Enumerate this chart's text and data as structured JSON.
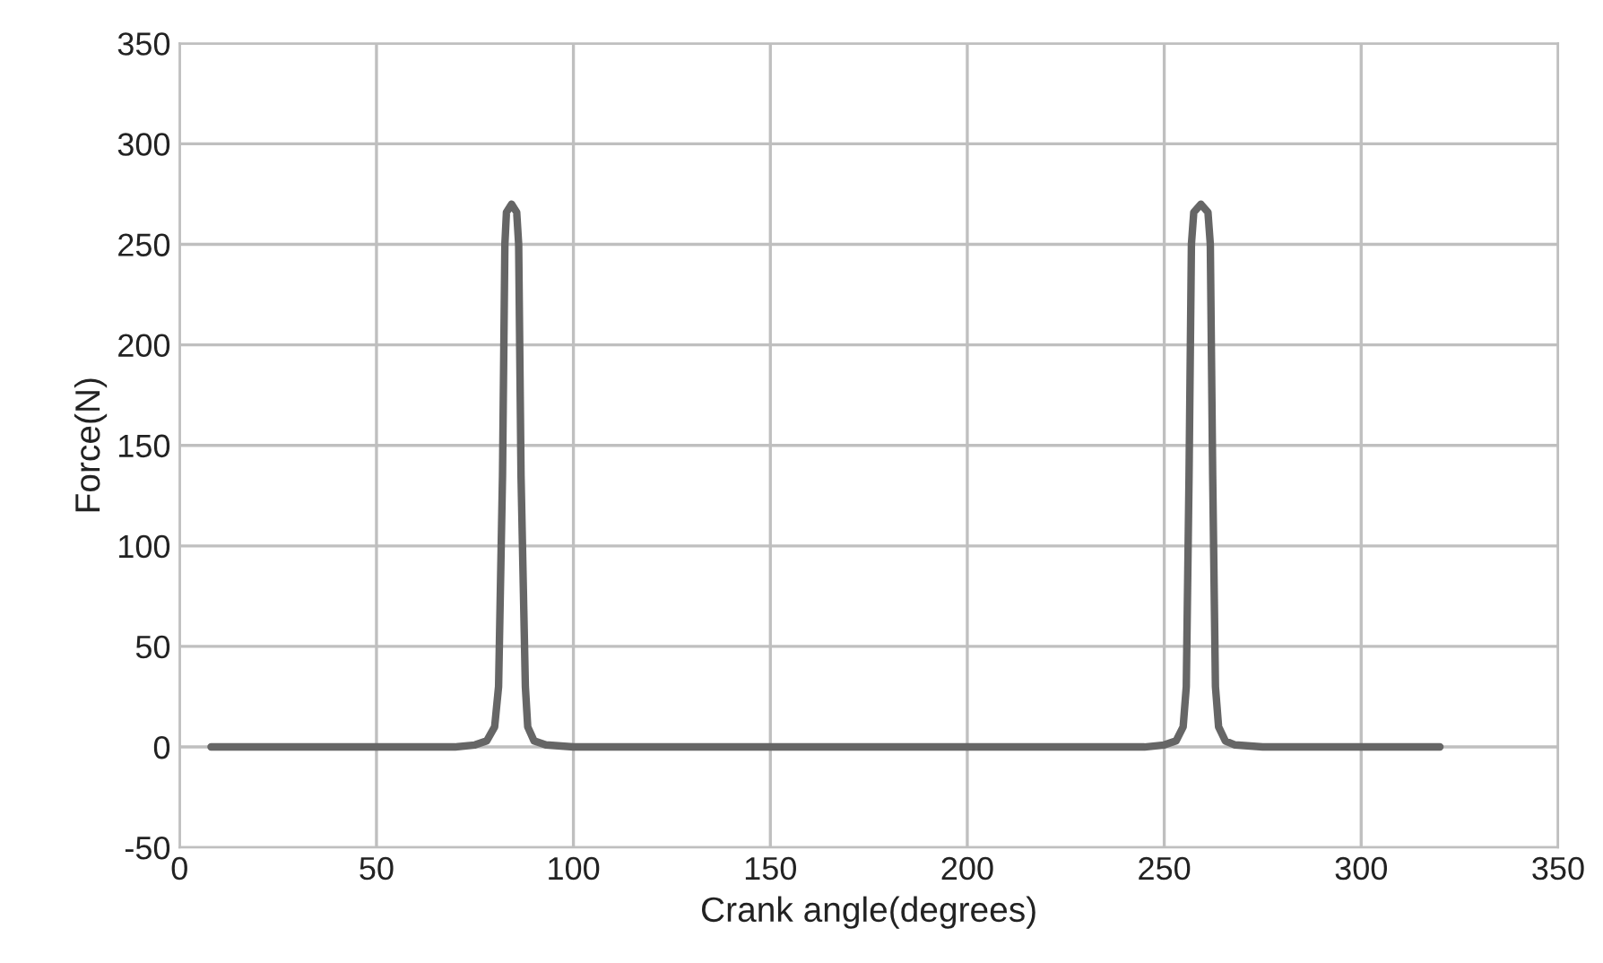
{
  "chart_data": {
    "type": "line",
    "xlabel": "Crank angle(degrees)",
    "ylabel": "Force(N)",
    "x": [
      8,
      70,
      75,
      78,
      80,
      81,
      82,
      82.6,
      83,
      84.3,
      85.6,
      86.1,
      86.7,
      87.8,
      88.4,
      90,
      93,
      100,
      245,
      250,
      253,
      254.8,
      255.6,
      256.3,
      256.9,
      257.5,
      259.3,
      261.1,
      261.7,
      262.3,
      263,
      263.8,
      265.5,
      268,
      275,
      320
    ],
    "series": [
      {
        "color": "#666666",
        "values": [
          0,
          0,
          1,
          3,
          10,
          30,
          135,
          250,
          266,
          270,
          266,
          250,
          135,
          30,
          10,
          3,
          1,
          0,
          0,
          1,
          3,
          10,
          30,
          135,
          250,
          266,
          270,
          266,
          250,
          135,
          30,
          10,
          3,
          1,
          0,
          0
        ]
      }
    ],
    "xlim": [
      0,
      350
    ],
    "ylim": [
      -50,
      350
    ],
    "xticks": [
      0,
      50,
      100,
      150,
      200,
      250,
      300,
      350
    ],
    "yticks": [
      -50,
      0,
      50,
      100,
      150,
      200,
      250,
      300,
      350
    ],
    "grid": true,
    "marker": "none",
    "line_style": "solid"
  }
}
